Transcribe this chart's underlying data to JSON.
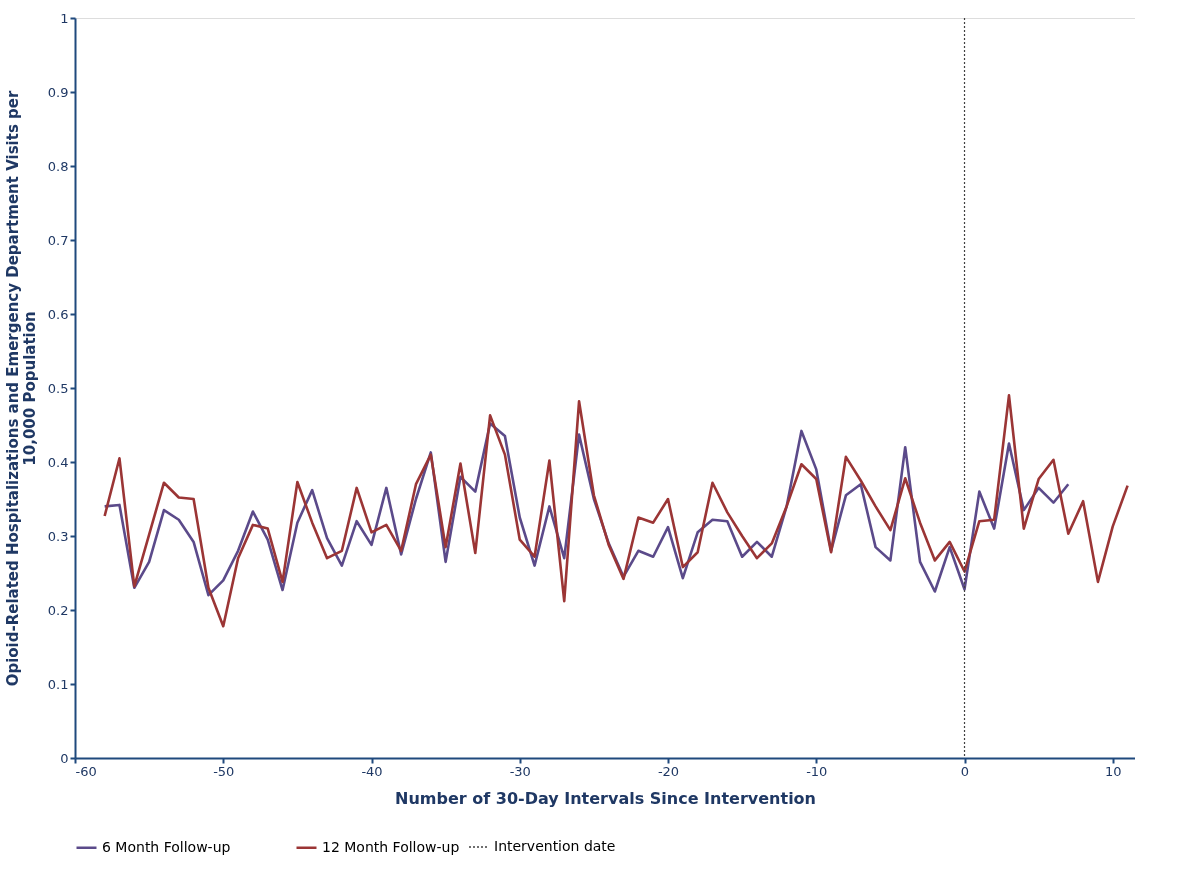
{
  "chart_data": {
    "type": "line",
    "xlabel": "Number of 30-Day Intervals Since Intervention",
    "ylabel": "Opioid-Related Hospitalizations  and Emergency Department Visits  per 10,000 Population",
    "xlim": [
      -60,
      11.5
    ],
    "xticks": [
      -60,
      -50,
      -40,
      -30,
      -20,
      -10,
      0,
      10
    ],
    "ylim": [
      0,
      1
    ],
    "yticks": [
      0,
      0.1,
      0.2,
      0.3,
      0.4,
      0.5,
      0.6,
      0.7,
      0.8,
      0.9,
      1
    ],
    "grid": false,
    "legend": "bottom",
    "marker": "none",
    "line_style": "solid",
    "series": [
      {
        "name": "6 Month Follow-up",
        "color": "#5b4a8a",
        "x": [
          -58,
          -57,
          -56,
          -55,
          -54,
          -53,
          -52,
          -51,
          -50,
          -49,
          -48,
          -47,
          -46,
          -45,
          -44,
          -43,
          -42,
          -41,
          -40,
          -39,
          -38,
          -37,
          -36,
          -35,
          -34,
          -33,
          -32,
          -31,
          -30,
          -29,
          -28,
          -27,
          -26,
          -25,
          -24,
          -23,
          -22,
          -21,
          -20,
          -19,
          -18,
          -17,
          -16,
          -15,
          -14,
          -13,
          -12,
          -11,
          -10,
          -9,
          -8,
          -7,
          -6,
          -5,
          -4,
          -3,
          -2,
          -1,
          0,
          1,
          2,
          3,
          4,
          5,
          6,
          7
        ],
        "values": [
          0.34,
          0.342,
          0.23,
          0.265,
          0.335,
          0.322,
          0.292,
          0.22,
          0.24,
          0.28,
          0.333,
          0.295,
          0.227,
          0.318,
          0.362,
          0.297,
          0.26,
          0.32,
          0.288,
          0.365,
          0.275,
          0.35,
          0.413,
          0.265,
          0.38,
          0.36,
          0.452,
          0.435,
          0.325,
          0.26,
          0.34,
          0.27,
          0.437,
          0.35,
          0.29,
          0.245,
          0.28,
          0.272,
          0.312,
          0.243,
          0.305,
          0.322,
          0.32,
          0.272,
          0.292,
          0.272,
          0.34,
          0.442,
          0.39,
          0.28,
          0.355,
          0.37,
          0.285,
          0.267,
          0.42,
          0.265,
          0.225,
          0.285,
          0.228,
          0.36,
          0.31,
          0.425,
          0.335,
          0.365,
          0.345,
          0.37
        ]
      },
      {
        "name": "12 Month Follow-up",
        "color": "#9b3535",
        "x": [
          -58,
          -57,
          -56,
          -55,
          -54,
          -53,
          -52,
          -51,
          -50,
          -49,
          -48,
          -47,
          -46,
          -45,
          -44,
          -43,
          -42,
          -41,
          -40,
          -39,
          -38,
          -37,
          -36,
          -35,
          -34,
          -33,
          -32,
          -31,
          -30,
          -29,
          -28,
          -27,
          -26,
          -25,
          -24,
          -23,
          -22,
          -21,
          -20,
          -19,
          -18,
          -17,
          -16,
          -15,
          -14,
          -13,
          -12,
          -11,
          -10,
          -9,
          -8,
          -7,
          -6,
          -5,
          -4,
          -3,
          -2,
          -1,
          0,
          1,
          2,
          3,
          4,
          5,
          6,
          7,
          8,
          9,
          10,
          11
        ],
        "values": [
          0.327,
          0.405,
          0.232,
          0.302,
          0.372,
          0.352,
          0.35,
          0.23,
          0.178,
          0.27,
          0.315,
          0.31,
          0.238,
          0.373,
          0.318,
          0.27,
          0.28,
          0.365,
          0.305,
          0.315,
          0.28,
          0.37,
          0.41,
          0.285,
          0.398,
          0.277,
          0.463,
          0.41,
          0.295,
          0.272,
          0.402,
          0.212,
          0.482,
          0.355,
          0.288,
          0.242,
          0.325,
          0.318,
          0.35,
          0.258,
          0.278,
          0.372,
          0.332,
          0.3,
          0.27,
          0.29,
          0.34,
          0.397,
          0.377,
          0.278,
          0.407,
          0.375,
          0.34,
          0.308,
          0.378,
          0.318,
          0.267,
          0.292,
          0.252,
          0.32,
          0.322,
          0.49,
          0.31,
          0.377,
          0.403,
          0.303,
          0.347,
          0.238,
          0.313,
          0.368
        ]
      }
    ],
    "ref_lines": [
      {
        "axis": "x",
        "value": 0,
        "label": "Intervention date",
        "color": "#404040",
        "line_style": "dotted"
      }
    ]
  }
}
